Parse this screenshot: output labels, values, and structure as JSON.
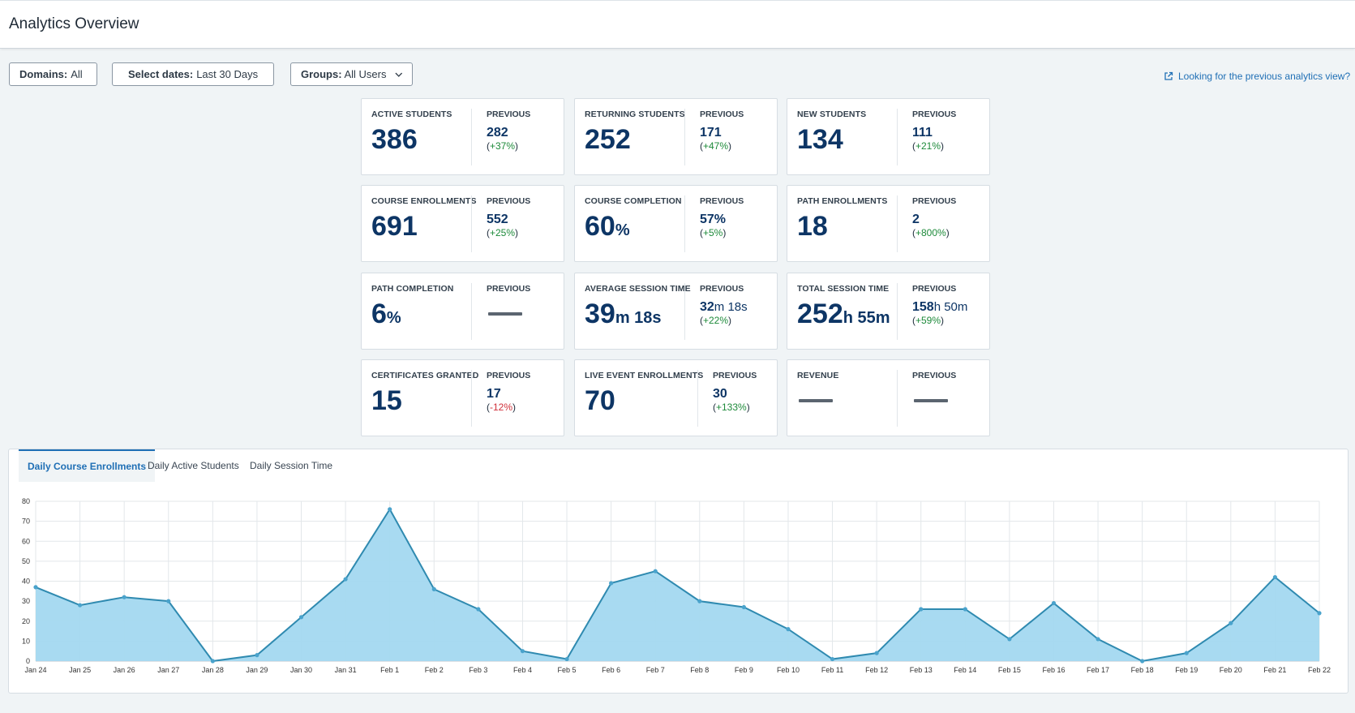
{
  "header": {
    "title": "Analytics Overview"
  },
  "filters": [
    {
      "label": "Domains:",
      "value": "All"
    },
    {
      "label": "Select dates:",
      "value": "Last 30 Days"
    },
    {
      "label": "Groups:",
      "value": "All Users"
    }
  ],
  "previous_view_link": "Looking for the previous analytics view?",
  "cards": [
    {
      "label": "ACTIVE STUDENTS",
      "value": "386",
      "prev_label": "PREVIOUS",
      "prev_value": "282",
      "change_open": "(",
      "change": "+37%",
      "change_close": ")"
    },
    {
      "label": "RETURNING STUDENTS",
      "value": "252",
      "prev_label": "PREVIOUS",
      "prev_value": "171",
      "change_open": "(",
      "change": "+47%",
      "change_close": ")"
    },
    {
      "label": "NEW STUDENTS",
      "value": "134",
      "prev_label": "PREVIOUS",
      "prev_value": "111",
      "change_open": "(",
      "change": "+21%",
      "change_close": ")"
    },
    {
      "label": "COURSE ENROLLMENTS",
      "value": "691",
      "prev_label": "PREVIOUS",
      "prev_value": "552",
      "change_open": "(",
      "change": "+25%",
      "change_close": ")"
    },
    {
      "label": "COURSE COMPLETION",
      "value": "60",
      "value_unit": "%",
      "prev_label": "PREVIOUS",
      "prev_value": "57%",
      "change_open": "(",
      "change": "+5%",
      "change_close": ")"
    },
    {
      "label": "PATH ENROLLMENTS",
      "value": "18",
      "prev_label": "PREVIOUS",
      "prev_value": "2",
      "change_open": "(",
      "change": "+800%",
      "change_close": ")"
    },
    {
      "label": "PATH COMPLETION",
      "value": "6",
      "value_unit": "%",
      "prev_label": "PREVIOUS"
    },
    {
      "label": "AVERAGE SESSION TIME",
      "value": "39",
      "value_unit": "m 18s",
      "prev_label": "PREVIOUS",
      "prev_value": "32",
      "prev_unit": "m 18s",
      "change_open": "(",
      "change": "+22%",
      "change_close": ")"
    },
    {
      "label": "TOTAL SESSION TIME",
      "value": "252",
      "value_unit": "h 55m",
      "prev_label": "PREVIOUS",
      "prev_value": "158",
      "prev_unit": "h 50m",
      "change_open": "(",
      "change": "+59%",
      "change_close": ")"
    },
    {
      "label": "CERTIFICATES GRANTED",
      "value": "15",
      "prev_label": "PREVIOUS",
      "prev_value": "17",
      "change_open": "(",
      "change": "-12%",
      "change_close": ")"
    },
    {
      "label": "LIVE EVENT ENROLLMENTS",
      "value": "70",
      "prev_label": "PREVIOUS",
      "prev_value": "30",
      "change_open": "(",
      "change": "+133%",
      "change_close": ")"
    },
    {
      "label": "REVENUE",
      "prev_label": "PREVIOUS"
    }
  ],
  "tabs": [
    {
      "label": "Daily Course Enrollments",
      "active": true
    },
    {
      "label": "Daily Active Students",
      "active": false
    },
    {
      "label": "Daily Session Time",
      "active": false
    }
  ],
  "colors": {
    "accent": "#1f6fb5",
    "value_text": "#0d3565",
    "positive": "#1d8a3a",
    "negative": "#d0303a",
    "area_fill": "#a3d8f0",
    "area_line": "#2f8ab0"
  },
  "icons": [
    "chevron-down-icon",
    "calendar-icon",
    "external-link-icon"
  ],
  "chart_data": {
    "type": "area",
    "title": "",
    "xlabel": "",
    "ylabel": "",
    "ylim": [
      0,
      80
    ],
    "yticks": [
      0,
      10,
      20,
      30,
      40,
      50,
      60,
      70,
      80
    ],
    "grid": true,
    "categories": [
      "Jan 24",
      "Jan 25",
      "Jan 26",
      "Jan 27",
      "Jan 28",
      "Jan 29",
      "Jan 30",
      "Jan 31",
      "Feb 1",
      "Feb 2",
      "Feb 3",
      "Feb 4",
      "Feb 5",
      "Feb 6",
      "Feb 7",
      "Feb 8",
      "Feb 9",
      "Feb 10",
      "Feb 11",
      "Feb 12",
      "Feb 13",
      "Feb 14",
      "Feb 15",
      "Feb 16",
      "Feb 17",
      "Feb 18",
      "Feb 19",
      "Feb 20",
      "Feb 21",
      "Feb 22"
    ],
    "series": [
      {
        "values": [
          37,
          28,
          32,
          30,
          0,
          3,
          22,
          41,
          76,
          36,
          26,
          5,
          1,
          39,
          45,
          30,
          27,
          16,
          1,
          4,
          26,
          26,
          11,
          29,
          11,
          0,
          4,
          19,
          42,
          24
        ]
      }
    ]
  }
}
